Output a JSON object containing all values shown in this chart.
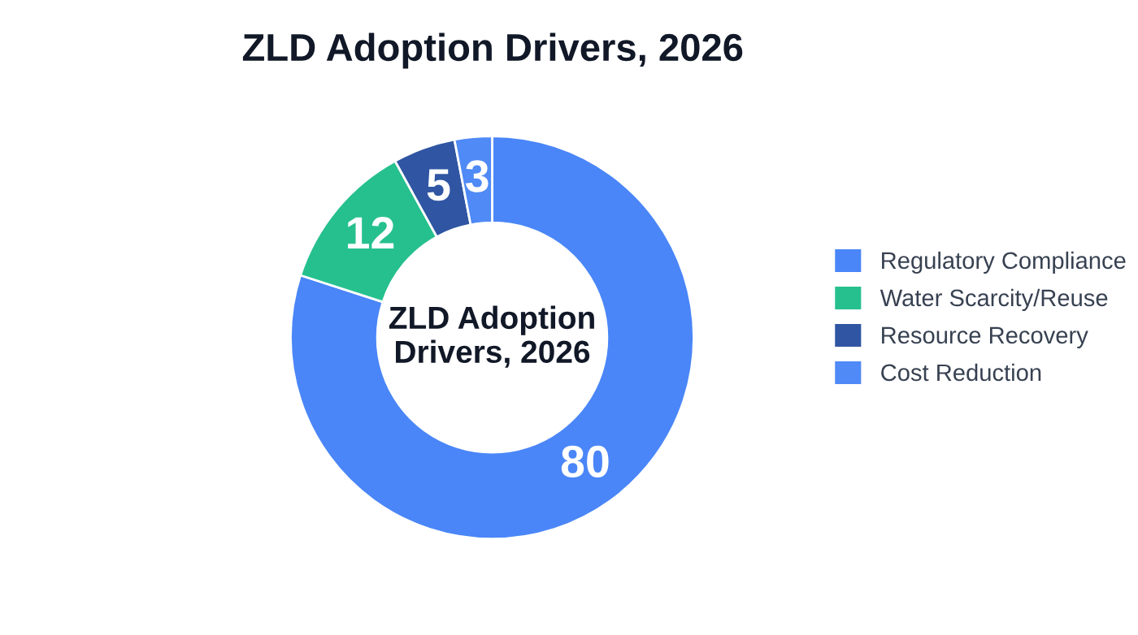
{
  "chart_data": {
    "type": "donut",
    "title": "ZLD Adoption Drivers, 2026",
    "categories": [
      "Regulatory Compliance",
      "Water Scarcity/Reuse",
      "Resource Recovery",
      "Cost Reduction"
    ],
    "values": [
      80,
      12,
      5,
      3
    ],
    "colors": [
      "#4a86f8",
      "#26c08e",
      "#2f55a3",
      "#4f8af6"
    ],
    "data_labels": true,
    "annotations": [
      "ZLD Adoption Drivers, 2026"
    ],
    "legend": "right"
  }
}
